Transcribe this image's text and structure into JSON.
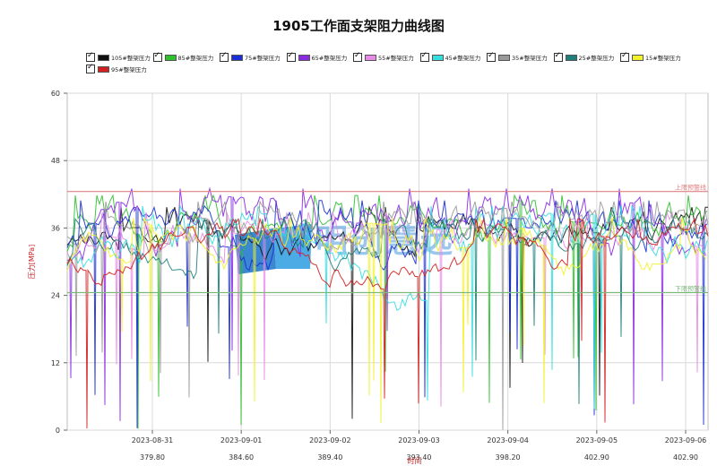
{
  "chart_data": {
    "type": "line",
    "title": "1905工作面支架阻力曲线图",
    "xlabel": "时间",
    "ylabel": "压力[MPa]",
    "ylim": [
      0,
      60
    ],
    "yticks": [
      0,
      12,
      24,
      36,
      48,
      60
    ],
    "grid": true,
    "legend_position": "top",
    "date_ticks": [
      "2023-08-31",
      "2023-09-01",
      "2023-09-02",
      "2023-09-03",
      "2023-09-04",
      "2023-09-05",
      "2023-09-06"
    ],
    "distance_ticks": [
      "379.80",
      "384.60",
      "389.40",
      "393.40",
      "398.20",
      "402.90",
      "402.90"
    ],
    "thresholds": [
      {
        "label": "上限预警线",
        "value": 42.5,
        "color": "#e08080"
      },
      {
        "label": "下限预警线",
        "value": 24.5,
        "color": "#7db87d"
      }
    ],
    "watermark": "明创慧远",
    "series": [
      {
        "name": "105#整架压力",
        "color": "#111111",
        "base": 32,
        "spread": 3.5
      },
      {
        "name": "85#整架压力",
        "color": "#2fc02f",
        "base": 33,
        "spread": 4.0
      },
      {
        "name": "75#整架压力",
        "color": "#1a2fd4",
        "base": 31,
        "spread": 4.5
      },
      {
        "name": "65#整架压力",
        "color": "#8a2be2",
        "base": 32,
        "spread": 5.0
      },
      {
        "name": "55#整架压力",
        "color": "#e68be6",
        "base": 30,
        "spread": 4.0
      },
      {
        "name": "45#整架压力",
        "color": "#34dede",
        "base": 30,
        "spread": 4.5
      },
      {
        "name": "35#整架压力",
        "color": "#9a9a9a",
        "base": 33,
        "spread": 3.5
      },
      {
        "name": "25#整架压力",
        "color": "#1f7f7a",
        "base": 31,
        "spread": 3.0
      },
      {
        "name": "15#整架压力",
        "color": "#f2f22a",
        "base": 29,
        "spread": 4.0
      },
      {
        "name": "95#整架压力",
        "color": "#d42020",
        "base": 31,
        "spread": 3.0
      }
    ]
  }
}
